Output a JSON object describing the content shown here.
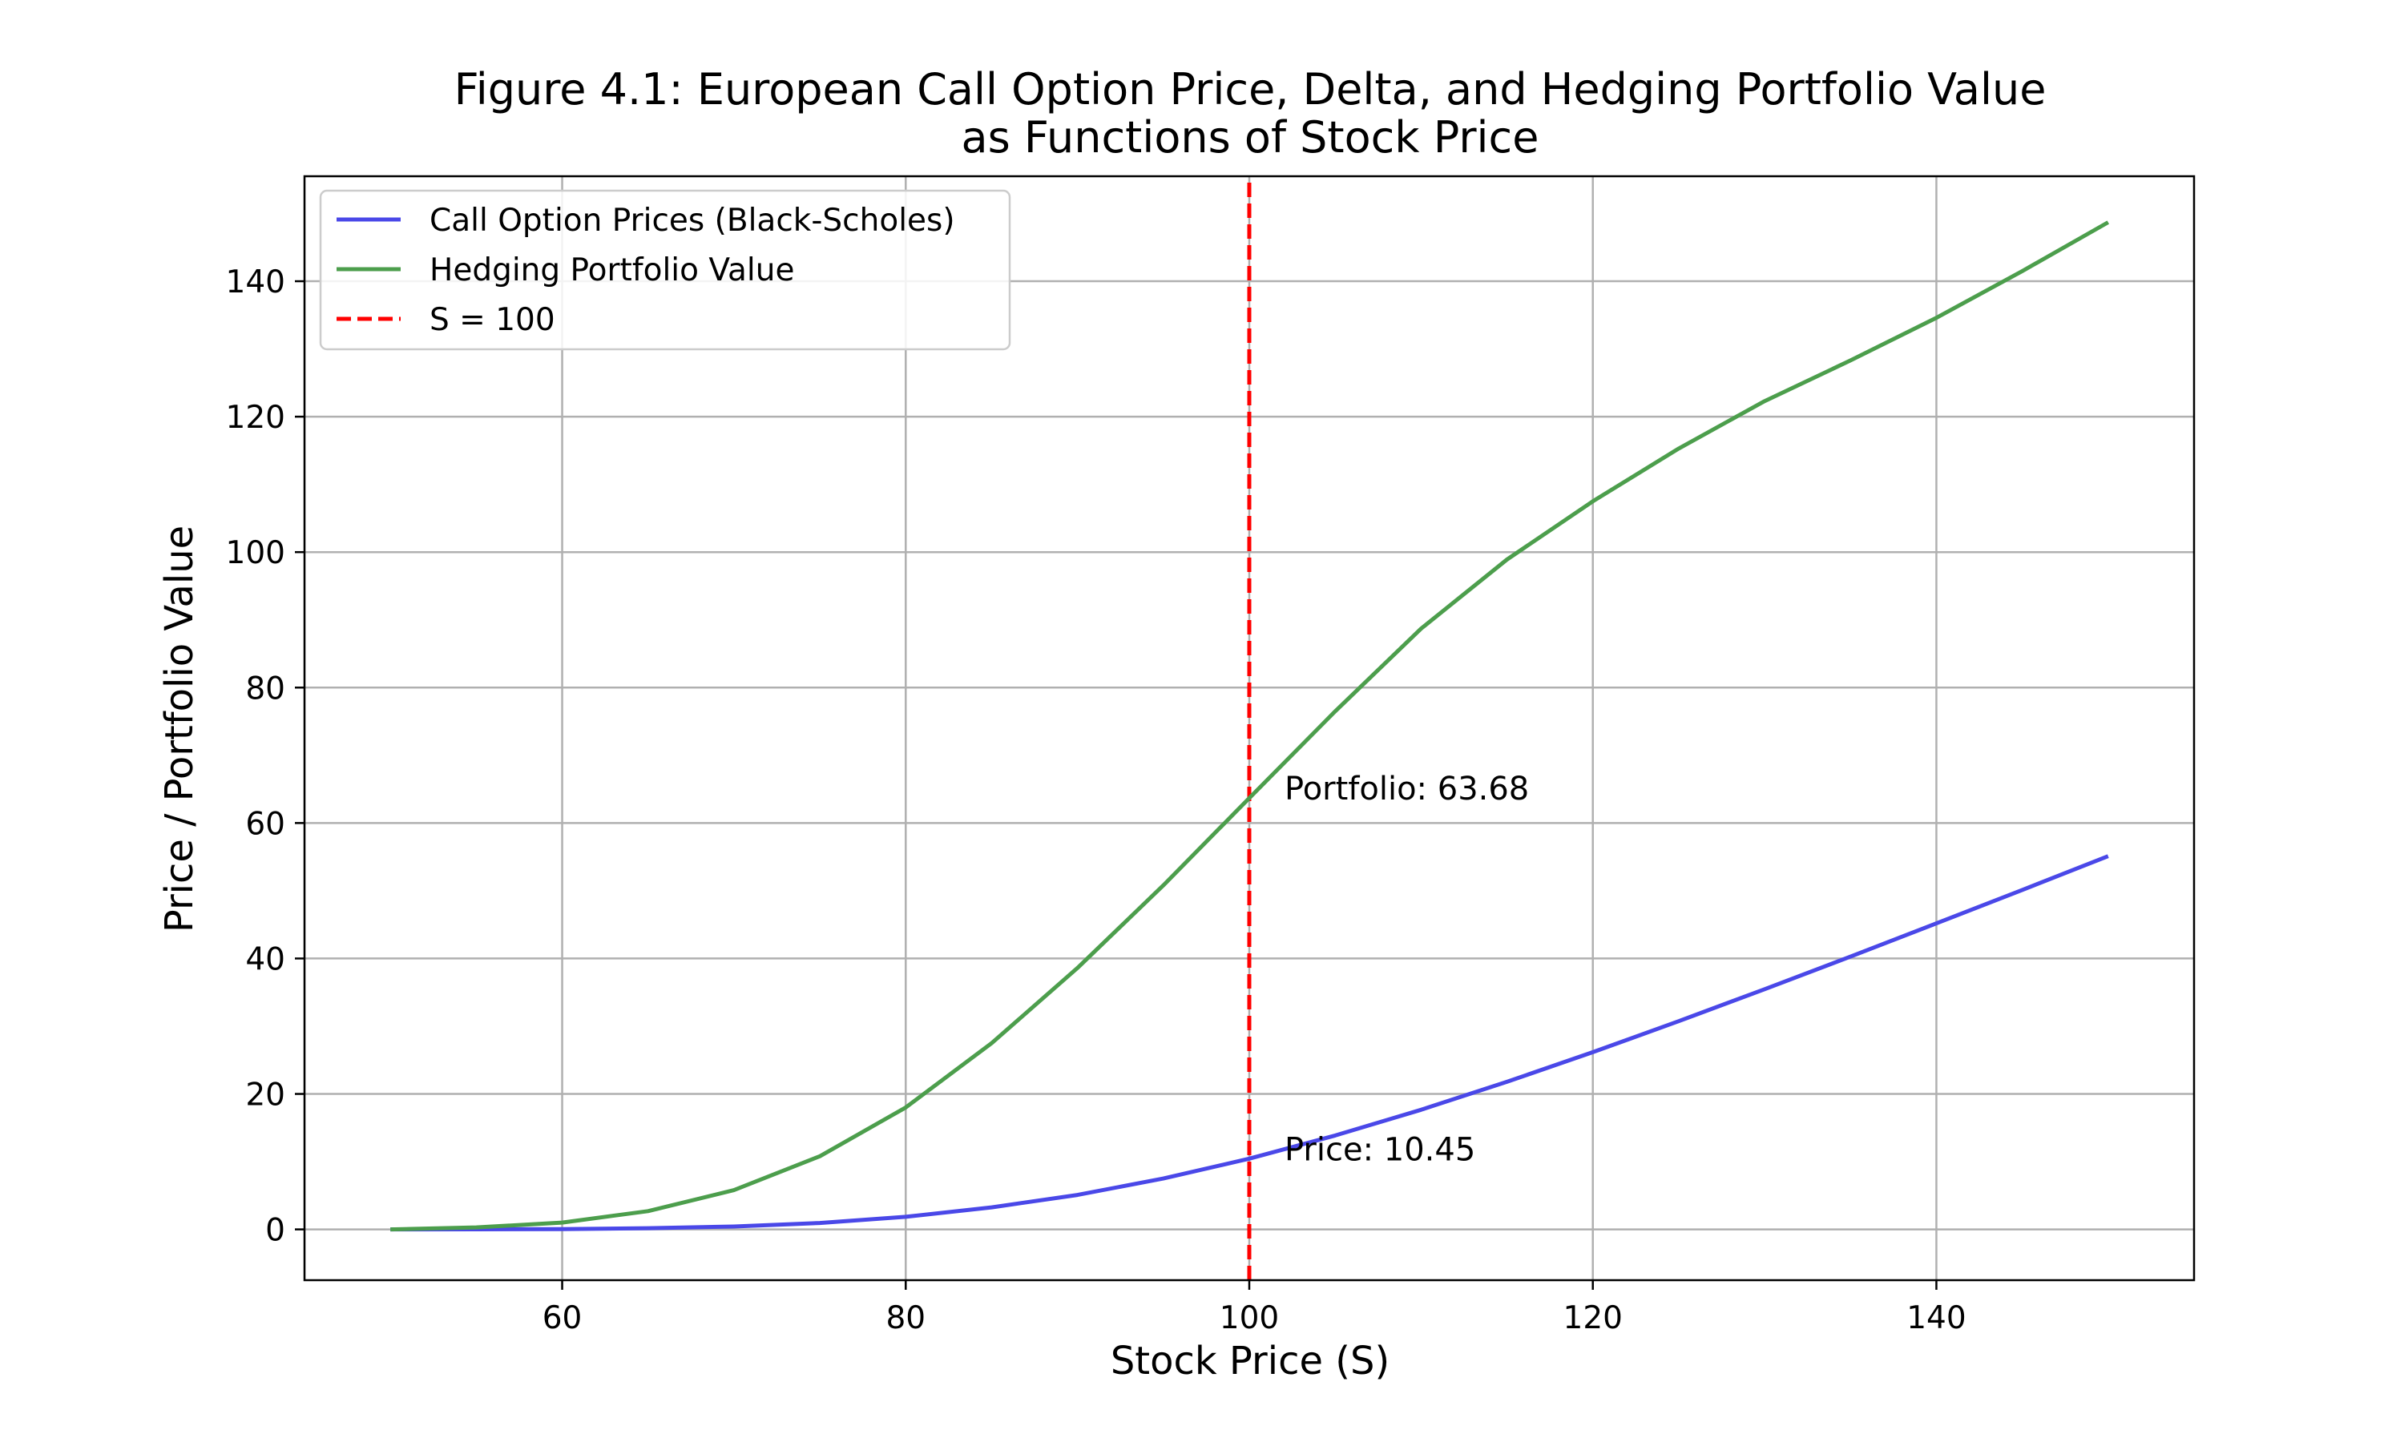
{
  "chart_data": {
    "type": "line",
    "title": "Figure 4.1: European Call Option Price, Delta, and Hedging Portfolio Value",
    "subtitle": "as Functions of Stock Price",
    "xlabel": "Stock Price (S)",
    "ylabel": "Price / Portfolio Value",
    "xlim": [
      45,
      155
    ],
    "ylim": [
      -7.5,
      155.5
    ],
    "xticks": [
      60,
      80,
      100,
      120,
      140
    ],
    "yticks": [
      0,
      20,
      40,
      60,
      80,
      100,
      120,
      140
    ],
    "grid": true,
    "legend_position": "upper-left",
    "series": [
      {
        "name": "Call Option Prices (Black-Scholes)",
        "color": "#4a48e8",
        "x": [
          50,
          55,
          60,
          65,
          70,
          75,
          80,
          85,
          90,
          95,
          100,
          105,
          110,
          115,
          120,
          125,
          130,
          135,
          140,
          145,
          150
        ],
        "y": [
          0.0,
          0.01,
          0.05,
          0.18,
          0.43,
          0.95,
          1.86,
          3.25,
          5.09,
          7.51,
          10.45,
          13.86,
          17.66,
          21.79,
          26.17,
          30.74,
          35.46,
          40.28,
          45.18,
          50.12,
          55.11
        ]
      },
      {
        "name": "Hedging Portfolio Value",
        "color": "#4c9e4c",
        "x": [
          50,
          55,
          60,
          65,
          70,
          75,
          80,
          85,
          90,
          95,
          100,
          105,
          110,
          115,
          120,
          125,
          130,
          135,
          140,
          145,
          150
        ],
        "y": [
          0.0,
          0.3,
          1.0,
          2.7,
          5.8,
          10.8,
          18.0,
          27.5,
          38.6,
          50.8,
          63.68,
          76.5,
          88.7,
          98.9,
          107.5,
          115.3,
          122.3,
          128.3,
          134.6,
          141.5,
          148.7
        ]
      },
      {
        "name": "S = 100",
        "color": "#ff0000",
        "style": "dashed",
        "x": [
          100,
          100
        ],
        "y": [
          -7.5,
          155.5
        ]
      }
    ],
    "annotations": [
      {
        "text": "Portfolio: 63.68",
        "x": 100,
        "y": 63.68
      },
      {
        "text": "Price: 10.45",
        "x": 100,
        "y": 10.45
      }
    ]
  }
}
